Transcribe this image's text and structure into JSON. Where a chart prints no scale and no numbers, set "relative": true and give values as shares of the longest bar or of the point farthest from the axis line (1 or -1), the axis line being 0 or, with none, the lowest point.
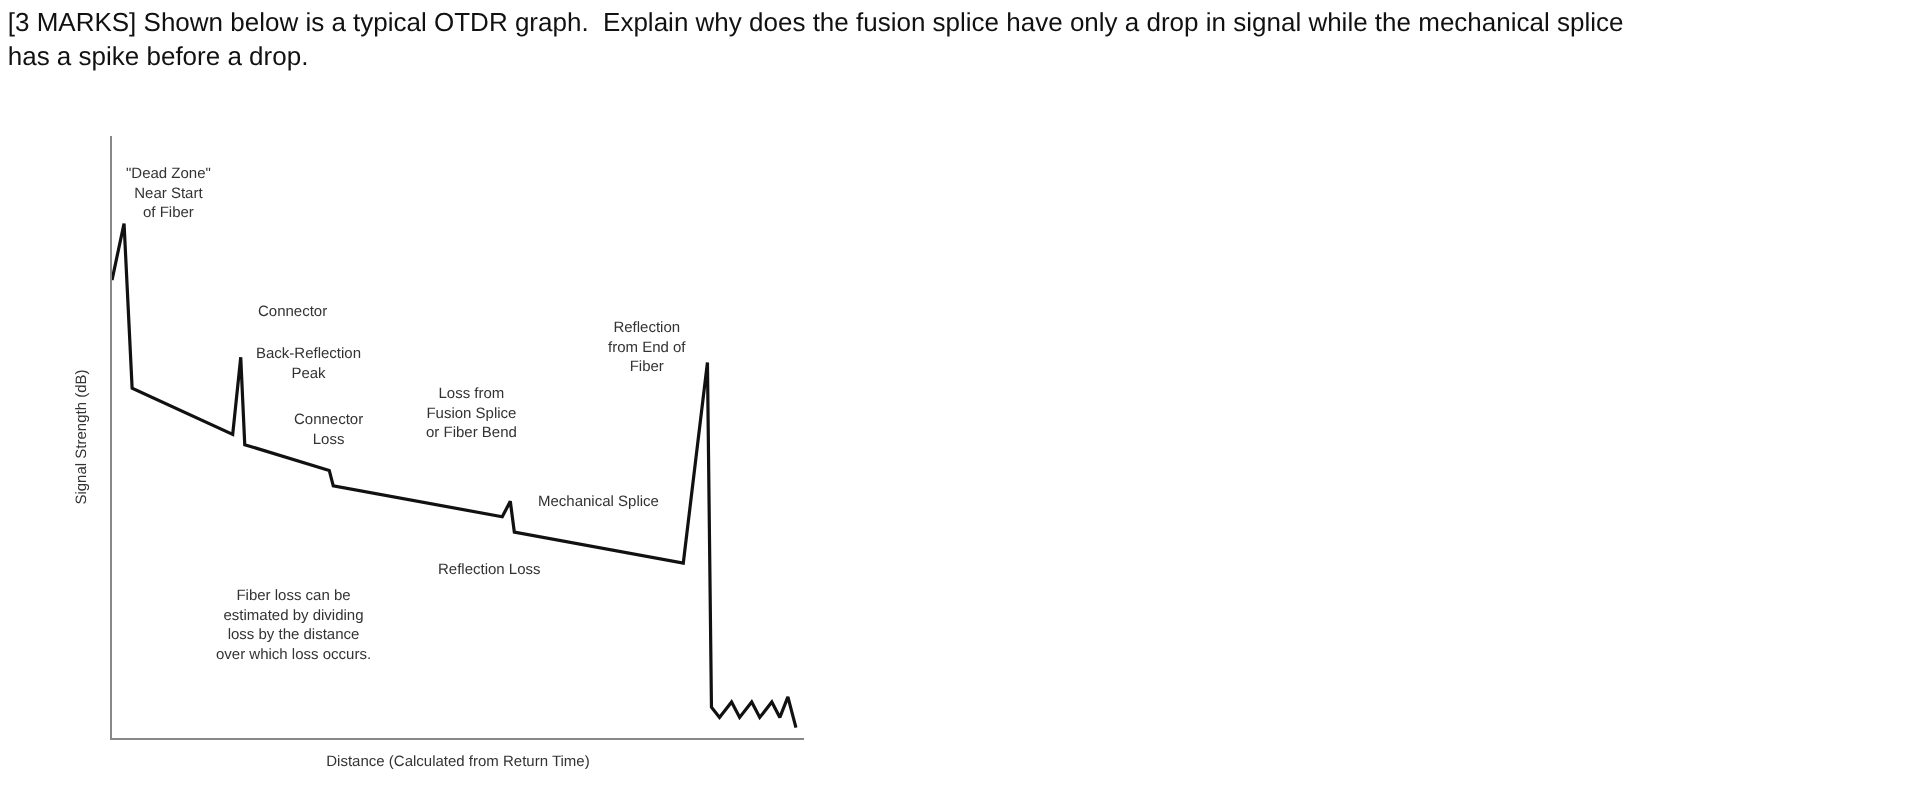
{
  "chart_data": {
    "type": "line",
    "relative": true,
    "title": "[3 MARKS] Shown below is a typical OTDR graph.  Explain why does the fusion splice have only a drop in signal while the mechanical splice has a spike before a drop.",
    "xlabel": "Distance (Calculated from Return Time)",
    "ylabel": "Signal Strength (dB)",
    "legend": false,
    "marker": "none",
    "line_style": "solid",
    "categories": [
      null,
      null,
      null,
      null,
      null,
      null,
      null,
      null,
      null,
      null,
      null,
      null,
      null,
      null,
      null,
      null,
      null,
      null,
      null,
      null,
      null,
      null,
      null,
      null,
      null,
      null,
      null,
      null,
      null,
      null,
      null,
      null,
      null,
      null,
      null,
      null,
      null,
      null,
      null,
      null,
      null,
      null,
      null,
      null,
      null,
      null,
      null,
      null,
      null,
      null,
      null,
      null,
      null,
      null,
      null,
      null,
      null,
      null,
      null,
      null,
      null,
      null,
      null,
      null,
      null,
      null,
      null,
      null,
      null,
      null,
      null,
      null,
      null,
      null,
      null,
      null,
      null,
      null,
      null,
      null,
      null,
      null,
      null,
      null,
      null,
      null,
      null,
      null,
      null,
      null,
      null,
      null,
      null,
      null,
      null,
      null,
      null,
      null,
      null,
      null,
      null,
      null,
      null,
      null,
      null,
      null,
      null,
      null,
      null,
      null,
      null,
      null,
      null,
      null,
      null,
      null,
      null,
      null,
      null,
      null,
      null,
      null,
      null,
      null,
      null,
      null,
      null,
      null,
      null,
      null,
      null,
      null,
      null,
      null,
      null,
      null,
      null,
      null,
      null,
      null,
      null,
      null,
      null,
      null,
      null,
      null,
      null,
      null,
      null,
      null,
      null,
      null,
      null,
      null,
      null,
      null,
      null,
      null,
      null,
      null,
      null,
      null,
      null,
      null,
      null,
      null,
      null,
      null,
      null,
      null,
      null
    ],
    "series": [
      {
        "color": "#111111",
        "values": [
          0.89,
          null,
          null,
          1.0,
          null,
          0.68,
          null,
          null,
          null,
          null,
          null,
          null,
          null,
          null,
          null,
          null,
          null,
          null,
          null,
          null,
          null,
          null,
          null,
          null,
          null,
          null,
          null,
          null,
          null,
          null,
          0.59,
          null,
          0.74,
          0.57,
          null,
          null,
          null,
          null,
          null,
          null,
          null,
          null,
          null,
          null,
          null,
          null,
          null,
          null,
          null,
          null,
          null,
          null,
          null,
          null,
          0.52,
          0.49,
          null,
          null,
          null,
          null,
          null,
          null,
          null,
          null,
          null,
          null,
          null,
          null,
          null,
          null,
          null,
          null,
          null,
          null,
          null,
          null,
          null,
          null,
          null,
          null,
          null,
          null,
          null,
          null,
          null,
          null,
          null,
          null,
          null,
          null,
          null,
          null,
          null,
          null,
          null,
          null,
          null,
          0.43,
          null,
          0.46,
          0.4,
          null,
          null,
          null,
          null,
          null,
          null,
          null,
          null,
          null,
          null,
          null,
          null,
          null,
          null,
          null,
          null,
          null,
          null,
          null,
          null,
          null,
          null,
          null,
          null,
          null,
          null,
          null,
          null,
          null,
          null,
          null,
          null,
          null,
          null,
          null,
          null,
          null,
          null,
          null,
          null,
          null,
          0.34,
          null,
          null,
          null,
          null,
          null,
          0.73,
          0.06,
          null,
          0.04,
          null,
          null,
          0.07,
          null,
          0.04,
          null,
          null,
          0.07,
          null,
          0.04,
          null,
          null,
          0.07,
          null,
          0.04,
          null,
          0.08,
          0.05,
          0.02
        ]
      }
    ],
    "annotations": [
      "\"Dead Zone\"\nNear Start\nof Fiber",
      "Connector",
      "Back-Reflection\nPeak",
      "Connector\nLoss",
      "Loss from\nFusion Splice\nor Fiber Bend",
      "Mechanical Splice",
      "Reflection\nfrom End of\nFiber",
      "Reflection Loss",
      "Fiber loss can be\nestimated by dividing\nloss by the distance\nover which loss occurs."
    ]
  }
}
